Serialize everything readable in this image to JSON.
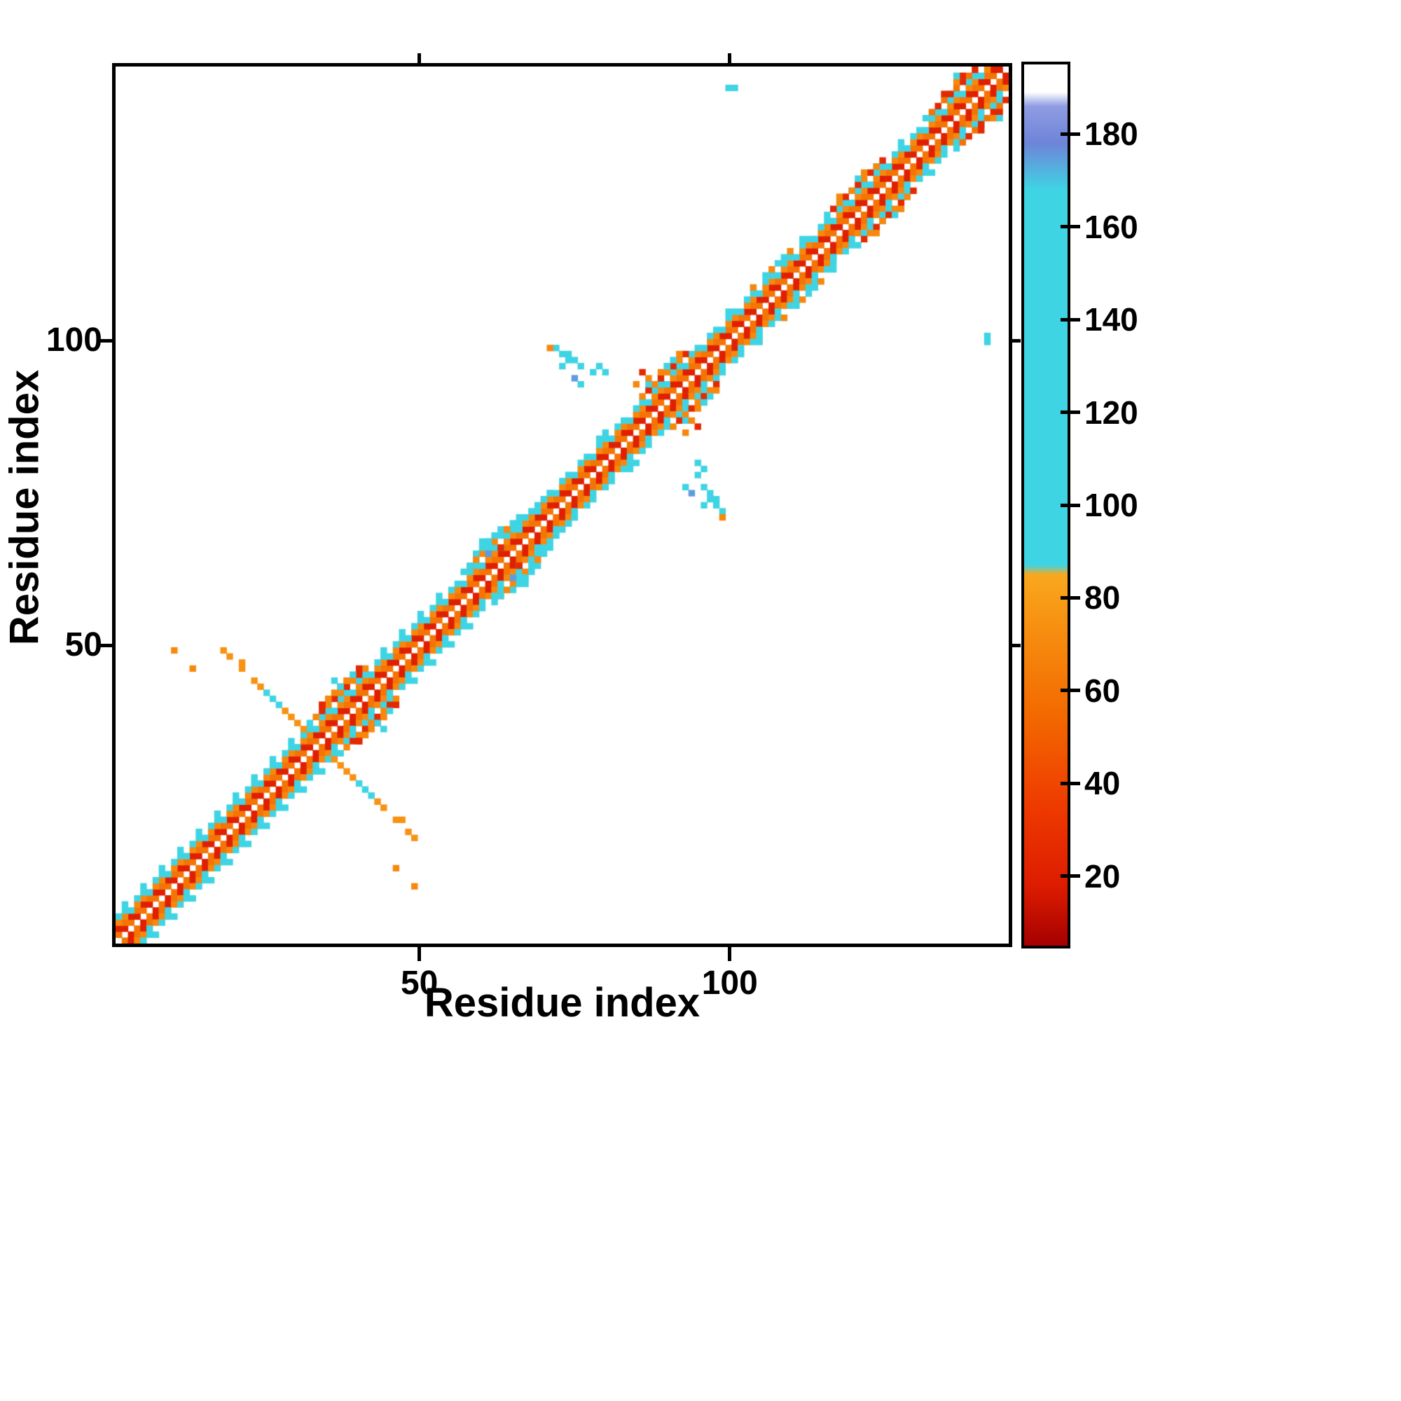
{
  "figure": {
    "kind": "protein residue contact map heatmap"
  },
  "chart_data": {
    "type": "heatmap",
    "title": "",
    "xlabel": "Residue index",
    "ylabel": "Residue index",
    "x_range": [
      1,
      145
    ],
    "y_range": [
      1,
      145
    ],
    "n_residues": 145,
    "grid": false,
    "legend": "colorbar-right",
    "x_ticks": [
      {
        "value": 50,
        "label": "50"
      },
      {
        "value": 100,
        "label": "100"
      }
    ],
    "y_ticks": [
      {
        "value": 50,
        "label": "50"
      },
      {
        "value": 100,
        "label": "100"
      }
    ],
    "colorbar": {
      "value_range": [
        5,
        195
      ],
      "ticks": [
        {
          "value": 20,
          "label": "20"
        },
        {
          "value": 40,
          "label": "40"
        },
        {
          "value": 60,
          "label": "60"
        },
        {
          "value": 80,
          "label": "80"
        },
        {
          "value": 100,
          "label": "100"
        },
        {
          "value": 120,
          "label": "120"
        },
        {
          "value": 140,
          "label": "140"
        },
        {
          "value": 160,
          "label": "160"
        },
        {
          "value": 180,
          "label": "180"
        }
      ]
    },
    "colormap": [
      {
        "value": 5,
        "color": "#a50000"
      },
      {
        "value": 18,
        "color": "#dd1c00"
      },
      {
        "value": 35,
        "color": "#ee3a00"
      },
      {
        "value": 55,
        "color": "#f36a00"
      },
      {
        "value": 75,
        "color": "#f79212"
      },
      {
        "value": 85,
        "color": "#f9a81e"
      },
      {
        "value": 87,
        "color": "#3fd4e4"
      },
      {
        "value": 168,
        "color": "#3fd4e4"
      },
      {
        "value": 178,
        "color": "#6e84d8"
      },
      {
        "value": 186,
        "color": "#8f9ce2"
      },
      {
        "value": 189,
        "color": "#ffffff"
      },
      {
        "value": 195,
        "color": "#ffffff"
      }
    ],
    "diagonal_excluded": true,
    "band_segments": [
      {
        "offset": 1,
        "start": 1,
        "end": 144,
        "values": [
          60,
          20
        ]
      },
      {
        "offset": 2,
        "start": 1,
        "end": 143,
        "values": [
          20,
          60
        ]
      },
      {
        "offset": 3,
        "start": 1,
        "end": 142,
        "values": [
          70,
          70,
          100
        ]
      },
      {
        "offset": 4,
        "start": 1,
        "end": 141,
        "values": [
          100,
          100,
          0
        ]
      },
      {
        "offset": 5,
        "start": 2,
        "end": 54,
        "values": [
          105,
          0,
          0
        ]
      },
      {
        "offset": 5,
        "start": 100,
        "end": 138,
        "values": [
          105,
          0,
          0,
          0
        ]
      },
      {
        "offset": 5,
        "start": 33,
        "end": 41,
        "values": [
          70,
          25
        ]
      },
      {
        "offset": 6,
        "start": 34,
        "end": 40,
        "values": [
          25,
          70,
          0
        ]
      },
      {
        "offset": 5,
        "start": 58,
        "end": 65,
        "values": [
          70,
          100
        ]
      },
      {
        "offset": 6,
        "start": 59,
        "end": 64,
        "values": [
          100,
          0
        ]
      },
      {
        "offset": 5,
        "start": 86,
        "end": 93,
        "values": [
          70,
          25
        ]
      },
      {
        "offset": 6,
        "start": 87,
        "end": 92,
        "values": [
          100,
          0,
          70
        ]
      },
      {
        "offset": 5,
        "start": 104,
        "end": 111,
        "values": [
          70,
          0,
          100
        ]
      },
      {
        "offset": 5,
        "start": 117,
        "end": 125,
        "values": [
          25,
          70
        ]
      },
      {
        "offset": 6,
        "start": 118,
        "end": 124,
        "values": [
          70,
          0,
          0,
          100
        ]
      },
      {
        "offset": 5,
        "start": 133,
        "end": 142,
        "values": [
          60,
          25
        ]
      },
      {
        "offset": 6,
        "start": 135,
        "end": 141,
        "values": [
          25,
          0,
          70
        ]
      },
      {
        "offset": 7,
        "start": 137,
        "end": 140,
        "values": [
          100,
          0
        ]
      }
    ],
    "contacts": [
      [
        18,
        49,
        75
      ],
      [
        19,
        48,
        75
      ],
      [
        21,
        47,
        75
      ],
      [
        21,
        46,
        75
      ],
      [
        23,
        44,
        75
      ],
      [
        24,
        43,
        75
      ],
      [
        25,
        42,
        100
      ],
      [
        26,
        41,
        100
      ],
      [
        27,
        40,
        100
      ],
      [
        28,
        39,
        75
      ],
      [
        29,
        38,
        75
      ],
      [
        30,
        37,
        75
      ],
      [
        31,
        36,
        75
      ],
      [
        13,
        46,
        70
      ],
      [
        10,
        49,
        70
      ],
      [
        35,
        41,
        70
      ],
      [
        36,
        42,
        70
      ],
      [
        36,
        44,
        100
      ],
      [
        37,
        43,
        100
      ],
      [
        38,
        44,
        70
      ],
      [
        39,
        45,
        100
      ],
      [
        34,
        40,
        25
      ],
      [
        57,
        62,
        100
      ],
      [
        58,
        63,
        100
      ],
      [
        59,
        64,
        70
      ],
      [
        60,
        66,
        100
      ],
      [
        60,
        67,
        100
      ],
      [
        61,
        67,
        100
      ],
      [
        62,
        68,
        100
      ],
      [
        63,
        66,
        25
      ],
      [
        61,
        65,
        175
      ],
      [
        64,
        69,
        70
      ],
      [
        65,
        70,
        100
      ],
      [
        66,
        70,
        100
      ],
      [
        66,
        71,
        100
      ],
      [
        69,
        73,
        100
      ],
      [
        70,
        74,
        100
      ],
      [
        71,
        75,
        100
      ],
      [
        79,
        84,
        100
      ],
      [
        80,
        85,
        100
      ],
      [
        73,
        98,
        100
      ],
      [
        74,
        98,
        100
      ],
      [
        74,
        97,
        100
      ],
      [
        75,
        97,
        100
      ],
      [
        73,
        96,
        100
      ],
      [
        76,
        96,
        100
      ],
      [
        75,
        94,
        175
      ],
      [
        76,
        93,
        100
      ],
      [
        78,
        95,
        100
      ],
      [
        79,
        96,
        100
      ],
      [
        80,
        95,
        100
      ],
      [
        72,
        99,
        100
      ],
      [
        71,
        99,
        70
      ],
      [
        85,
        93,
        70
      ],
      [
        86,
        95,
        25
      ],
      [
        87,
        94,
        70
      ],
      [
        90,
        96,
        100
      ],
      [
        91,
        97,
        100
      ],
      [
        114,
        117,
        100
      ],
      [
        100,
        142,
        100
      ],
      [
        101,
        142,
        100
      ]
    ]
  }
}
